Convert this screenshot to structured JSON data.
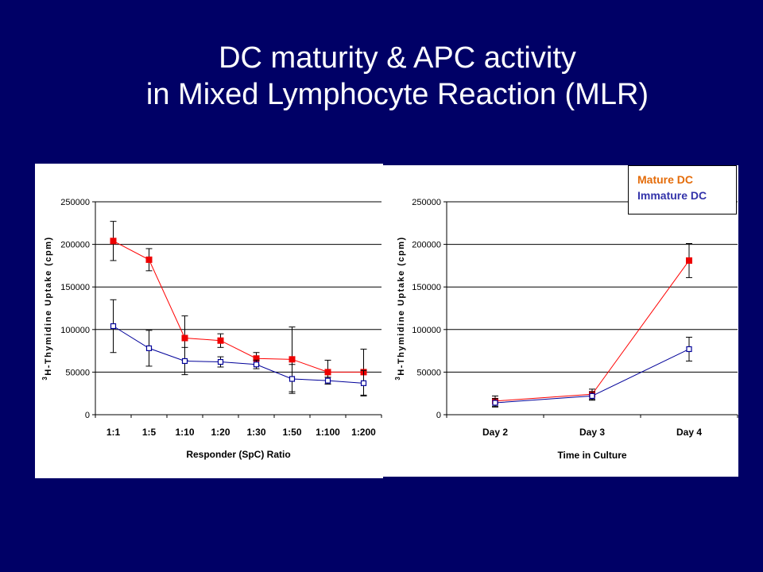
{
  "slide": {
    "title_line1": "DC maturity & APC activity",
    "title_line2": "in Mixed Lymphocyte Reaction (MLR)"
  },
  "legend": {
    "position": "top-right",
    "items": [
      {
        "label": "Mature DC",
        "color": "#e46c0a"
      },
      {
        "label": "Immature DC",
        "color": "#3333aa"
      }
    ]
  },
  "chart_data": [
    {
      "type": "line",
      "xlabel": "Responder (SpC) Ratio",
      "ylabel_sup": "3",
      "ylabel": "H-Thymidine Uptake (cpm)",
      "ylim": [
        0,
        250000
      ],
      "yticks": [
        "0",
        "50000",
        "100000",
        "150000",
        "200000",
        "250000"
      ],
      "ytick_values": [
        0,
        50000,
        100000,
        150000,
        200000,
        250000
      ],
      "grid": true,
      "categories": [
        "1:1",
        "1:5",
        "1:10",
        "1:20",
        "1:30",
        "1:50",
        "1:100",
        "1:200"
      ],
      "series": [
        {
          "name": "Mature DC",
          "marker": "filled-square",
          "color": "#ff0000",
          "marker_color": "#ee0000",
          "values": [
            204000,
            182000,
            90000,
            87000,
            66000,
            65000,
            50000,
            50000
          ],
          "errors": [
            23000,
            13000,
            26000,
            8000,
            7000,
            38000,
            14000,
            27000
          ]
        },
        {
          "name": "Immature DC",
          "marker": "open-square",
          "color": "#000099",
          "marker_color": "#000099",
          "values": [
            104000,
            78000,
            63000,
            62000,
            59000,
            42000,
            40000,
            37000
          ],
          "errors": [
            31000,
            21000,
            16000,
            6000,
            5000,
            17000,
            4000,
            15000
          ]
        }
      ]
    },
    {
      "type": "line",
      "xlabel": "Time in Culture",
      "ylabel_sup": "3",
      "ylabel": "H-Thymidine Uptake (cpm)",
      "ylim": [
        0,
        250000
      ],
      "yticks": [
        "0",
        "50000",
        "100000",
        "150000",
        "200000",
        "250000"
      ],
      "ytick_values": [
        0,
        50000,
        100000,
        150000,
        200000,
        250000
      ],
      "grid": true,
      "categories": [
        "Day 2",
        "Day 3",
        "Day 4"
      ],
      "series": [
        {
          "name": "Mature DC",
          "marker": "filled-square",
          "color": "#ff0000",
          "marker_color": "#ee0000",
          "values": [
            16000,
            24000,
            181000
          ],
          "errors": [
            6000,
            6000,
            20000
          ]
        },
        {
          "name": "Immature DC",
          "marker": "open-square",
          "color": "#000099",
          "marker_color": "#000099",
          "values": [
            14000,
            22000,
            77000
          ],
          "errors": [
            5000,
            5000,
            14000
          ]
        }
      ]
    }
  ]
}
